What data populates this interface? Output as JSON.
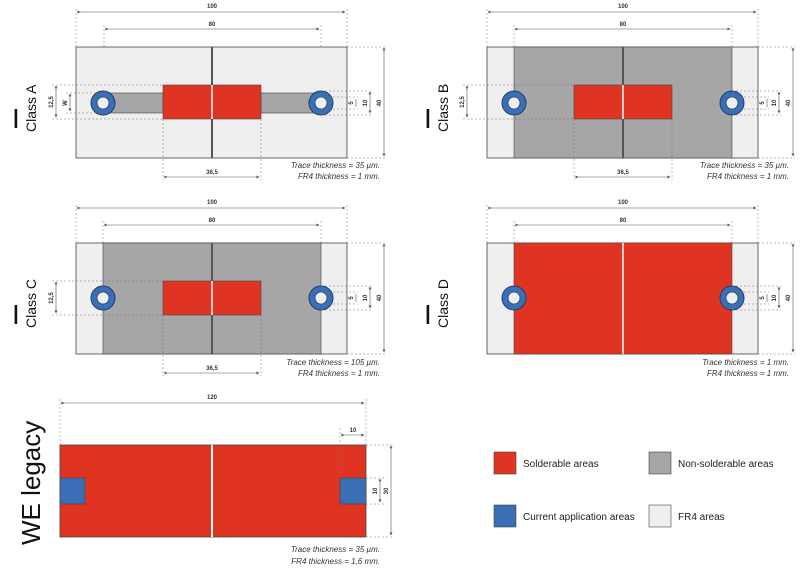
{
  "colors": {
    "solderable": "#e03422",
    "non_solderable": "#a6a6a6",
    "current": "#3a6fb5",
    "fr4": "#efefef",
    "line": "#444444",
    "dim_line": "#555555"
  },
  "class_a": {
    "title_main": "I",
    "title_sub": "Class A",
    "dim_100": "100",
    "dim_80": "80",
    "dim_365": "36,5",
    "dim_125": "12,5",
    "dim_w": "W",
    "dim_5": "5",
    "dim_10": "10",
    "dim_40": "40",
    "note_trace": "Trace thickness = 35 µm.",
    "note_fr4": "FR4 thickness = 1 mm."
  },
  "class_b": {
    "title_main": "I",
    "title_sub": "Class B",
    "dim_100": "100",
    "dim_80": "80",
    "dim_365": "36,5",
    "dim_125": "12,5",
    "dim_5": "5",
    "dim_10": "10",
    "dim_40": "40",
    "note_trace": "Trace thickness = 35 µm.",
    "note_fr4": "FR4 thickness = 1 mm."
  },
  "class_c": {
    "title_main": "I",
    "title_sub": "Class C",
    "dim_100": "100",
    "dim_80": "80",
    "dim_365": "36,5",
    "dim_125": "12,5",
    "dim_5": "5",
    "dim_10": "10",
    "dim_40": "40",
    "note_trace": "Trace thickness = 105 µm.",
    "note_fr4": "FR4 thickness = 1 mm."
  },
  "class_d": {
    "title_main": "I",
    "title_sub": "Class D",
    "dim_100": "100",
    "dim_80": "80",
    "dim_5": "5",
    "dim_10": "10",
    "dim_40": "40",
    "note_trace": "Trace thickness = 1 mm.",
    "note_fr4": "FR4 thickness = 1 mm."
  },
  "we_legacy": {
    "title": "WE legacy",
    "dim_120": "120",
    "dim_10_top": "10",
    "dim_10_side": "10",
    "dim_30": "30",
    "note_trace": "Trace thickness = 35 µm.",
    "note_fr4": "FR4 thickness = 1,6 mm."
  },
  "legend": {
    "solderable": "Solderable areas",
    "non_solderable": "Non-solderable areas",
    "current": "Current application areas",
    "fr4": "FR4 areas"
  }
}
